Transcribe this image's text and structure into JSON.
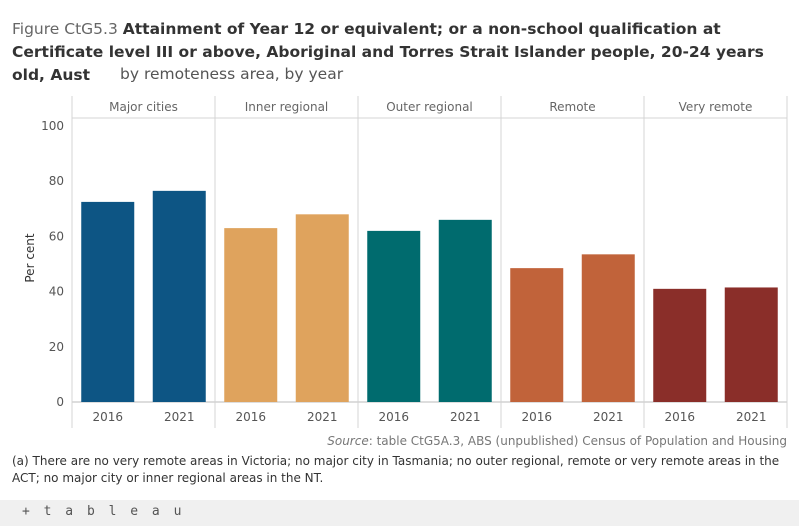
{
  "title": {
    "prefix": "Figure CtG5.3",
    "main": "Attainment of Year 12 or equivalent; or a non-school qualification at Certificate level III or above, Aboriginal and Torres Strait Islander people, 20-24 years old, Aust",
    "subtitle": "by remoteness area, by year"
  },
  "chart_data": {
    "type": "bar",
    "ylabel": "Per cent",
    "ylim": [
      0,
      100
    ],
    "yticks": [
      0,
      20,
      40,
      60,
      80,
      100
    ],
    "panels": [
      {
        "name": "Major cities",
        "color": "#0d5584",
        "categories": [
          "2016",
          "2021"
        ],
        "values": [
          72.5,
          76.5
        ]
      },
      {
        "name": "Inner regional",
        "color": "#dfa35d",
        "categories": [
          "2016",
          "2021"
        ],
        "values": [
          63,
          68
        ]
      },
      {
        "name": "Outer regional",
        "color": "#006b6e",
        "categories": [
          "2016",
          "2021"
        ],
        "values": [
          62,
          66
        ]
      },
      {
        "name": "Remote",
        "color": "#c1633a",
        "categories": [
          "2016",
          "2021"
        ],
        "values": [
          48.5,
          53.5
        ]
      },
      {
        "name": "Very remote",
        "color": "#8a2e29",
        "categories": [
          "2016",
          "2021"
        ],
        "values": [
          41,
          41.5
        ]
      }
    ]
  },
  "source": {
    "label": "Source",
    "text": ": table CtG5A.3, ABS (unpublished) Census of Population and Housing"
  },
  "note": "(a) There are no very remote areas in Victoria; no major city in Tasmania; no outer regional, remote or very remote areas in the ACT; no major city or inner regional areas in the NT.",
  "footer": {
    "logo": "+ t a b l e a u"
  }
}
